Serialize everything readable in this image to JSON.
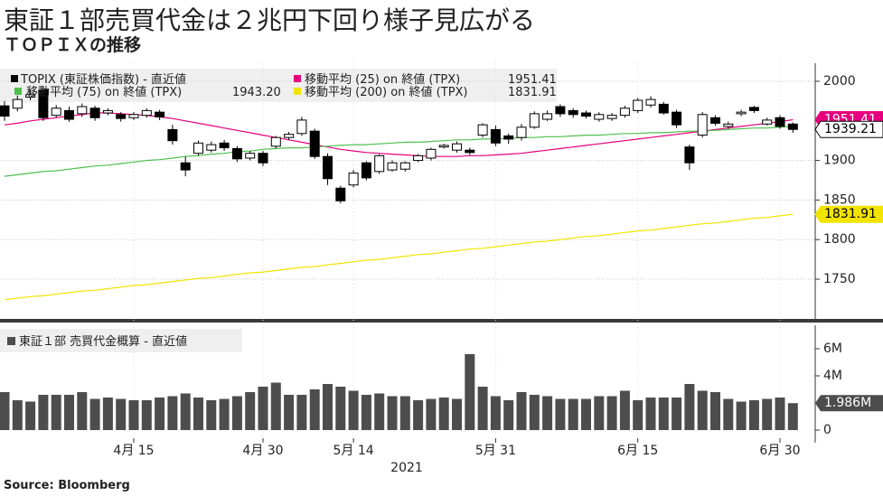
{
  "chart_data": [
    {
      "type": "candlestick",
      "title": "東証１部売買代金は２兆円下回り様子見広がる",
      "subtitle": "ＴＯＰＩＸの推移",
      "source": "Source: Bloomberg",
      "name": "TOPIX (東証株価指数) - 直近値",
      "open": [
        1969,
        1966,
        1980,
        1989,
        1957,
        1963,
        1959,
        1966,
        1960,
        1958,
        1954,
        1957,
        1961,
        1939,
        1897,
        1909,
        1913,
        1922,
        1915,
        1903,
        1909,
        1918,
        1929,
        1934,
        1937,
        1905,
        1865,
        1869,
        1897,
        1886,
        1888,
        1889,
        1900,
        1903,
        1917,
        1913,
        1913,
        1932,
        1939,
        1931,
        1929,
        1942,
        1952,
        1968,
        1963,
        1960,
        1952,
        1953,
        1957,
        1963,
        1970,
        1971,
        1961,
        1917,
        1932,
        1954,
        1943,
        1959,
        1967,
        1946,
        1954,
        1946
      ],
      "high": [
        1975,
        1982,
        1990,
        1993,
        1970,
        1968,
        1972,
        1969,
        1966,
        1961,
        1961,
        1966,
        1964,
        1945,
        1905,
        1925,
        1924,
        1926,
        1918,
        1912,
        1912,
        1931,
        1936,
        1955,
        1940,
        1909,
        1868,
        1888,
        1899,
        1908,
        1900,
        1899,
        1908,
        1916,
        1921,
        1924,
        1916,
        1947,
        1944,
        1934,
        1946,
        1962,
        1963,
        1971,
        1966,
        1963,
        1961,
        1960,
        1969,
        1979,
        1981,
        1974,
        1964,
        1920,
        1961,
        1957,
        1949,
        1964,
        1969,
        1954,
        1957,
        1948
      ],
      "low": [
        1950,
        1962,
        1976,
        1950,
        1954,
        1949,
        1955,
        1950,
        1957,
        1949,
        1951,
        1954,
        1951,
        1920,
        1880,
        1906,
        1910,
        1912,
        1898,
        1900,
        1893,
        1915,
        1926,
        1931,
        1902,
        1869,
        1846,
        1866,
        1875,
        1883,
        1886,
        1886,
        1898,
        1900,
        1915,
        1910,
        1907,
        1929,
        1918,
        1921,
        1925,
        1940,
        1950,
        1955,
        1954,
        1953,
        1949,
        1950,
        1954,
        1960,
        1967,
        1958,
        1941,
        1888,
        1929,
        1944,
        1940,
        1956,
        1960,
        1944,
        1940,
        1935
      ],
      "close": [
        1956,
        1977,
        1983,
        1954,
        1966,
        1952,
        1968,
        1954,
        1963,
        1953,
        1958,
        1963,
        1955,
        1925,
        1888,
        1922,
        1920,
        1916,
        1902,
        1909,
        1897,
        1929,
        1933,
        1951,
        1905,
        1877,
        1849,
        1884,
        1878,
        1906,
        1897,
        1897,
        1906,
        1914,
        1919,
        1921,
        1910,
        1945,
        1922,
        1927,
        1942,
        1959,
        1959,
        1959,
        1958,
        1956,
        1958,
        1957,
        1966,
        1976,
        1977,
        1960,
        1945,
        1897,
        1958,
        1947,
        1946,
        1961,
        1963,
        1951,
        1943,
        1939.21
      ],
      "series": [
        {
          "name": "移動平均 (25) on 終値 (TPX)",
          "color": "#e6007e",
          "latest": {
            "value": 1951.41,
            "label": "1951.41"
          },
          "values": [
            1945,
            1947,
            1950,
            1952,
            1954,
            1956,
            1958,
            1960,
            1960,
            1959,
            1958,
            1957,
            1955,
            1953,
            1950,
            1947,
            1944,
            1941,
            1938,
            1935,
            1932,
            1929,
            1926,
            1923,
            1920,
            1917,
            1914,
            1912,
            1910,
            1909,
            1908,
            1907,
            1906,
            1905,
            1905,
            1905,
            1906,
            1906,
            1907,
            1908,
            1909,
            1911,
            1913,
            1915,
            1917,
            1919,
            1921,
            1923,
            1925,
            1927,
            1929,
            1931,
            1933,
            1935,
            1937,
            1939,
            1941,
            1943,
            1945,
            1947,
            1949,
            1951.41
          ]
        },
        {
          "name": "移動平均 (75) on 終値 (TPX)",
          "color": "#4fc04f",
          "latest": {
            "value": 1943.2,
            "label": "1943.20"
          },
          "values": [
            1880,
            1882,
            1884,
            1886,
            1887,
            1889,
            1891,
            1893,
            1894,
            1896,
            1898,
            1900,
            1901,
            1903,
            1905,
            1906,
            1908,
            1909,
            1911,
            1912,
            1914,
            1915,
            1916,
            1916,
            1917,
            1918,
            1919,
            1920,
            1920,
            1921,
            1922,
            1923,
            1923,
            1924,
            1925,
            1926,
            1926,
            1927,
            1927,
            1928,
            1929,
            1929,
            1930,
            1930,
            1931,
            1932,
            1932,
            1933,
            1934,
            1934,
            1935,
            1935,
            1936,
            1937,
            1937,
            1938,
            1939,
            1940,
            1941,
            1941,
            1942,
            1943.2
          ]
        },
        {
          "name": "移動平均 (200) on 終値 (TPX)",
          "color": "#f2e400",
          "latest": {
            "value": 1831.91,
            "label": "1831.91"
          },
          "values": [
            1724,
            1726,
            1728,
            1729,
            1731,
            1733,
            1735,
            1736,
            1738,
            1740,
            1742,
            1743,
            1745,
            1747,
            1749,
            1751,
            1752,
            1754,
            1756,
            1758,
            1759,
            1761,
            1763,
            1765,
            1766,
            1768,
            1770,
            1772,
            1774,
            1775,
            1777,
            1779,
            1781,
            1782,
            1784,
            1786,
            1788,
            1789,
            1791,
            1793,
            1795,
            1797,
            1798,
            1800,
            1802,
            1804,
            1805,
            1807,
            1809,
            1811,
            1812,
            1814,
            1816,
            1818,
            1820,
            1821,
            1823,
            1825,
            1827,
            1828,
            1830,
            1831.91
          ]
        }
      ],
      "ylim": [
        1697.5,
        2022.8
      ],
      "yticks": [
        1750,
        1800,
        1850,
        1900,
        2000
      ],
      "grid": true
    },
    {
      "type": "bar",
      "name": "東証１部 売買代金概算 - 直近値",
      "color": "#4d4d4d",
      "xlabel": "2021",
      "categories": [
        null,
        null,
        null,
        null,
        null,
        null,
        null,
        null,
        null,
        null,
        "4月 15",
        null,
        null,
        null,
        null,
        null,
        null,
        null,
        null,
        null,
        "4月 30",
        null,
        null,
        null,
        null,
        null,
        null,
        "5月 14",
        null,
        null,
        null,
        null,
        null,
        null,
        null,
        null,
        null,
        null,
        "5月 31",
        null,
        null,
        null,
        null,
        null,
        null,
        null,
        null,
        null,
        null,
        "6月 15",
        null,
        null,
        null,
        null,
        null,
        null,
        null,
        null,
        null,
        null,
        "6月 30",
        null
      ],
      "values": [
        2.8,
        2.2,
        2.1,
        2.6,
        2.6,
        2.6,
        2.8,
        2.3,
        2.4,
        2.3,
        2.2,
        2.2,
        2.4,
        2.5,
        2.7,
        2.4,
        2.2,
        2.3,
        2.5,
        2.8,
        3.2,
        3.5,
        2.6,
        2.6,
        3.0,
        3.4,
        3.2,
        2.9,
        2.6,
        2.7,
        2.5,
        2.5,
        2.2,
        2.3,
        2.4,
        2.3,
        5.6,
        3.2,
        2.5,
        2.2,
        2.8,
        2.6,
        2.5,
        2.3,
        2.3,
        2.3,
        2.5,
        2.5,
        2.9,
        2.2,
        2.4,
        2.4,
        2.4,
        3.4,
        2.9,
        2.8,
        2.3,
        2.1,
        2.2,
        2.3,
        2.4,
        1.986
      ],
      "latest": {
        "value": 1.986,
        "label": "1.986M"
      },
      "ylim": [
        -0.93,
        7.73
      ],
      "yticks": [
        0,
        {
          "value": 4,
          "label": "4M"
        },
        {
          "value": 6,
          "label": "6M"
        }
      ]
    }
  ]
}
